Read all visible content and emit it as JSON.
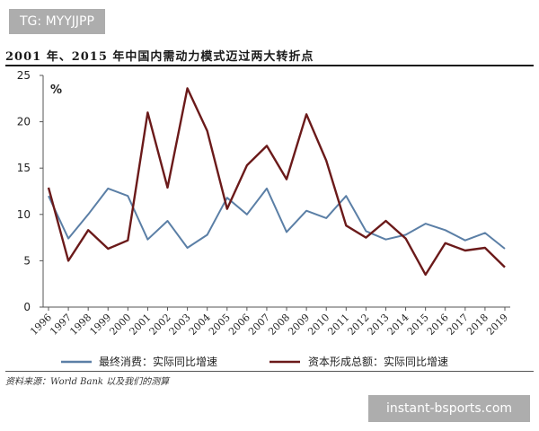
{
  "watermark_top": "TG: MYYJJPP",
  "watermark_bottom": "instant-bsports.com",
  "source_note": "资料来源：World Bank 以及我们的测算",
  "chart_data": {
    "type": "line",
    "title": "2001 年、2015 年中国内需动力模式迈过两大转折点",
    "ylabel": "%",
    "xlabel": "",
    "ylim": [
      0,
      25
    ],
    "yticks": [
      0,
      5,
      10,
      15,
      20,
      25
    ],
    "grid": false,
    "legend_position": "bottom",
    "categories": [
      "1996",
      "1997",
      "1998",
      "1999",
      "2000",
      "2001",
      "2002",
      "2003",
      "2004",
      "2005",
      "2006",
      "2007",
      "2008",
      "2009",
      "2010",
      "2011",
      "2012",
      "2013",
      "2014",
      "2015",
      "2016",
      "2017",
      "2018",
      "2019"
    ],
    "series": [
      {
        "name": "最终消费：实际同比增速",
        "color": "#5b7fa6",
        "values": [
          12.0,
          7.4,
          10.0,
          12.8,
          12.0,
          7.3,
          9.3,
          6.4,
          7.8,
          11.8,
          10.0,
          12.8,
          8.1,
          10.4,
          9.6,
          12.0,
          8.2,
          7.3,
          7.8,
          9.0,
          8.3,
          7.2,
          8.0,
          6.3
        ],
        "style": "solid"
      },
      {
        "name": "资本形成总额：实际同比增速",
        "color": "#6b1a1a",
        "values": [
          12.9,
          5.0,
          8.3,
          6.3,
          7.2,
          21.0,
          12.9,
          23.6,
          19.0,
          10.6,
          15.3,
          17.4,
          13.8,
          20.8,
          15.8,
          8.8,
          7.5,
          9.3,
          7.4,
          3.5,
          6.9,
          6.1,
          6.4,
          4.3
        ],
        "style": "solid"
      }
    ]
  }
}
